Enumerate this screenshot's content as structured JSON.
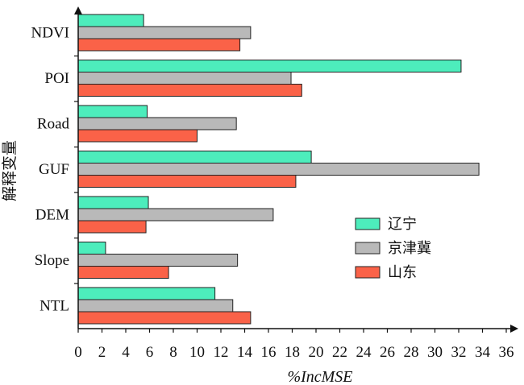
{
  "chart_data": {
    "type": "bar",
    "orientation": "horizontal",
    "title": "",
    "xlabel": "%IncMSE",
    "ylabel": "解释变量",
    "xlim": [
      0,
      36
    ],
    "xticks": [
      0,
      2,
      4,
      6,
      8,
      10,
      12,
      14,
      16,
      18,
      20,
      22,
      24,
      26,
      28,
      30,
      32,
      34,
      36
    ],
    "categories": [
      "NDVI",
      "POI",
      "Road",
      "GUF",
      "DEM",
      "Slope",
      "NTL"
    ],
    "series": [
      {
        "name": "辽宁",
        "color": "#4dedbc",
        "values": [
          5.5,
          32.2,
          5.8,
          19.6,
          5.9,
          2.3,
          11.5
        ]
      },
      {
        "name": "京津冀",
        "color": "#b9b9b9",
        "values": [
          14.5,
          17.9,
          13.3,
          33.7,
          16.4,
          13.4,
          13.0
        ]
      },
      {
        "name": "山东",
        "color": "#fa6248",
        "values": [
          13.6,
          18.8,
          10.0,
          18.3,
          5.7,
          7.6,
          14.5
        ]
      }
    ],
    "legend_position": "right-lower",
    "grid": false
  }
}
